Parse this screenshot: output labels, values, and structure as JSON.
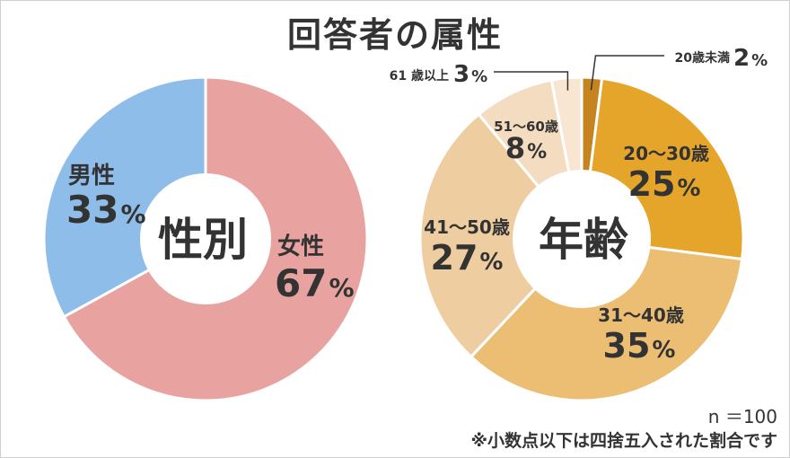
{
  "title": "回答者の属性",
  "colors": {
    "text": "#333333",
    "male": "#8fbde9",
    "female": "#e8a3a1",
    "age_20s_under": "#c5841f",
    "age_20_30": "#e5a52a",
    "age_31_40": "#ecbe74",
    "age_41_50": "#eecda0",
    "age_51_60": "#f4dcc0",
    "age_61_over": "#f8e6d3"
  },
  "chart_data": [
    {
      "type": "pie",
      "center_label": "性別",
      "slices": [
        {
          "name": "女性",
          "value": 67,
          "label": "67",
          "unit": "%",
          "color_key": "female"
        },
        {
          "name": "男性",
          "value": 33,
          "label": "33",
          "unit": "%",
          "color_key": "male"
        }
      ]
    },
    {
      "type": "pie",
      "center_label": "年齢",
      "slices": [
        {
          "name": "20歳未満",
          "value": 2,
          "label": "2",
          "unit": "%",
          "color_key": "age_20s_under"
        },
        {
          "name": "20～30歳",
          "value": 25,
          "label": "25",
          "unit": "%",
          "color_key": "age_20_30"
        },
        {
          "name": "31～40歳",
          "value": 35,
          "label": "35",
          "unit": "%",
          "color_key": "age_31_40"
        },
        {
          "name": "41～50歳",
          "value": 27,
          "label": "27",
          "unit": "%",
          "color_key": "age_41_50"
        },
        {
          "name": "51～60歳",
          "value": 8,
          "label": "8",
          "unit": "%",
          "color_key": "age_51_60"
        },
        {
          "name": "61 歳以上",
          "value": 3,
          "label": "3",
          "unit": "%",
          "color_key": "age_61_over"
        }
      ]
    }
  ],
  "notes": {
    "n": "n ＝100",
    "rounding": "※小数点以下は四捨五入された割合です"
  }
}
